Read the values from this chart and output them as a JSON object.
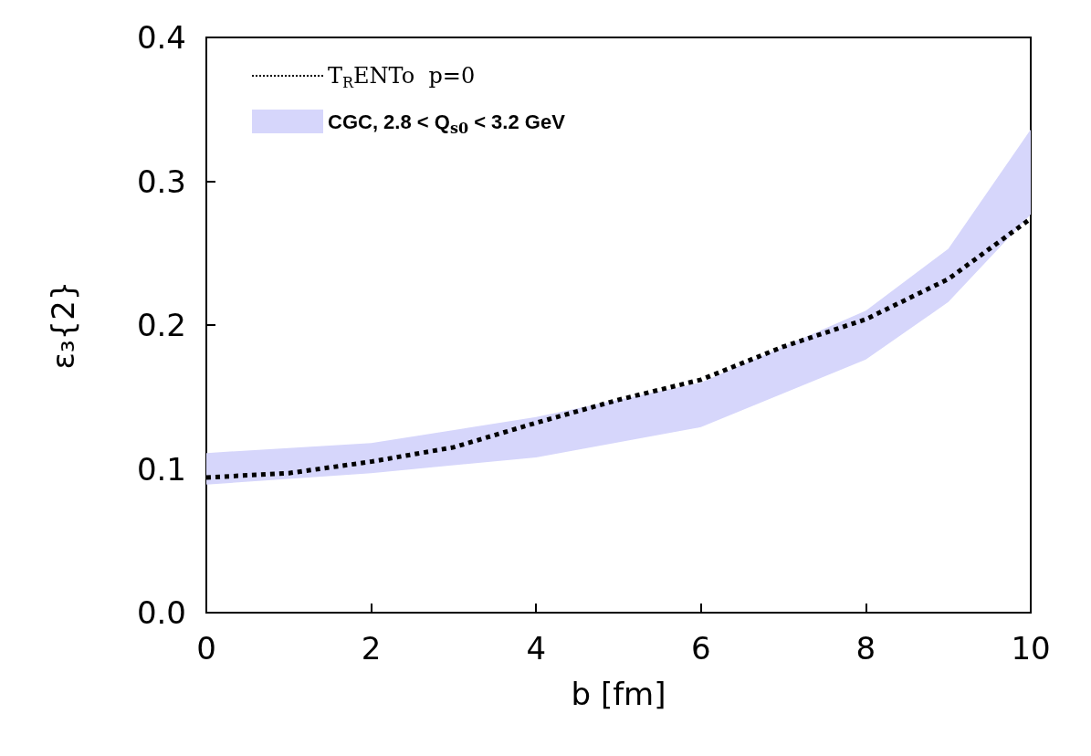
{
  "chart_data": {
    "type": "line",
    "xlabel": "b [fm]",
    "ylabel": "ε₃{2}",
    "x": [
      0,
      1,
      2,
      3,
      4,
      5,
      6,
      7,
      8,
      9,
      10
    ],
    "xlim": [
      0,
      10
    ],
    "xticks": [
      0,
      2,
      4,
      6,
      8,
      10
    ],
    "ylim": [
      0,
      0.4
    ],
    "yticks": [
      {
        "value": 0,
        "label": "0.0"
      },
      {
        "value": 0.1,
        "label": "0.1"
      },
      {
        "value": 0.2,
        "label": "0.2"
      },
      {
        "value": 0.3,
        "label": "0.3"
      },
      {
        "value": 0.4,
        "label": "0.4"
      }
    ],
    "grid": false,
    "legend": "top left",
    "marker": "none",
    "series": [
      {
        "name": "T$_{R}$ENTo  p=0",
        "color": "#000000",
        "line_style": "dotted",
        "values": [
          0.094,
          0.097,
          0.105,
          0.115,
          0.132,
          0.148,
          0.162,
          0.185,
          0.204,
          0.232,
          0.274
        ]
      },
      {
        "name": "CGC, 2.8 < Q$_{s0}$ < 3.2 GeV",
        "type": "area",
        "color": "#d6d6fb",
        "x": [
          0,
          2,
          4,
          6,
          8,
          9,
          10
        ],
        "values": [
          null,
          null,
          null,
          null,
          null,
          null,
          null
        ],
        "lower": [
          0.089,
          0.097,
          0.108,
          0.129,
          0.176,
          0.216,
          0.277
        ],
        "upper": [
          0.111,
          0.118,
          0.136,
          0.16,
          0.21,
          0.253,
          0.336
        ]
      }
    ]
  }
}
